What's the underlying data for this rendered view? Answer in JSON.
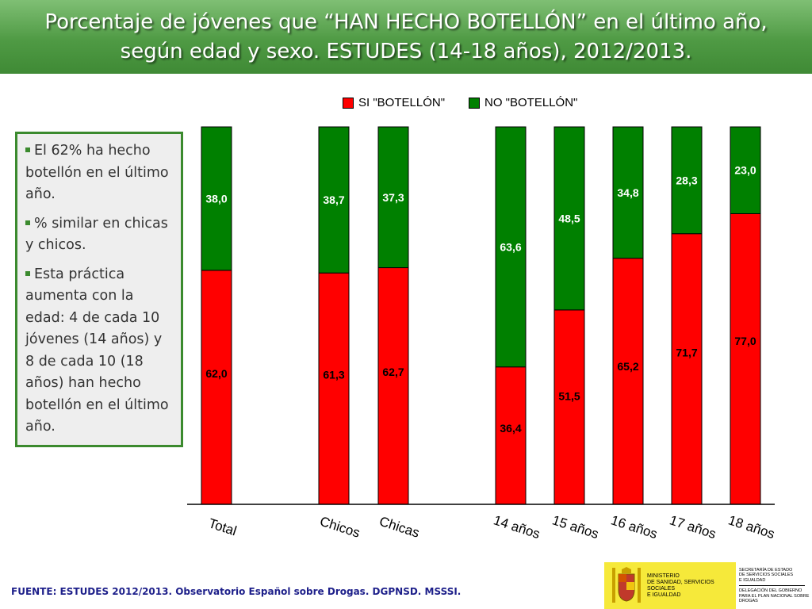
{
  "title": "Porcentaje de jóvenes que “HAN HECHO BOTELLÓN”  en el último año, según edad y sexo. ESTUDES (14-18 años), 2012/2013.",
  "bullets": [
    "El 62% ha hecho botellón en el último año.",
    "% similar en chicas y chicos.",
    "Esta práctica aumenta con la edad: 4 de cada 10 jóvenes (14 años) y 8 de cada 10 (18 años) han hecho botellón en el último año."
  ],
  "source": "FUENTE: ESTUDES 2012/2013. Observatorio Español sobre Drogas. DGPNSD. MSSSI.",
  "logo": {
    "ministry": [
      "MINISTERIO",
      "DE SANIDAD, SERVICIOS SOCIALES",
      "E IGUALDAD"
    ],
    "secretaria": [
      "SECRETARÍA DE ESTADO",
      "DE SERVICIOS SOCIALES",
      "E IGUALDAD"
    ],
    "delegacion": [
      "DELEGACIÓN DEL GOBIERNO",
      "PARA EL PLAN NACIONAL SOBRE DROGAS"
    ]
  },
  "colors": {
    "si": "#ff0000",
    "no": "#008000",
    "title_bg": "#4f9a44",
    "source": "#1d1f8a"
  },
  "chart_data": {
    "type": "bar",
    "stacked": true,
    "categories": [
      "Total",
      "Chicos",
      "Chicas",
      "14 años",
      "15 años",
      "16 años",
      "17 años",
      "18 años"
    ],
    "series": [
      {
        "name": "SI \"BOTELLÓN\"",
        "color": "#ff0000",
        "values": [
          62.0,
          61.3,
          62.7,
          36.4,
          51.5,
          65.2,
          71.7,
          77.0
        ],
        "labels": [
          "62,0",
          "61,3",
          "62,7",
          "36,4",
          "51,5",
          "65,2",
          "71,7",
          "77,0"
        ]
      },
      {
        "name": "NO \"BOTELLÓN\"",
        "color": "#008000",
        "values": [
          38.0,
          38.7,
          37.3,
          63.6,
          48.5,
          34.8,
          28.3,
          23.0
        ],
        "labels": [
          "38,0",
          "38,7",
          "37,3",
          "63,6",
          "48,5",
          "34,8",
          "28,3",
          "23,0"
        ]
      }
    ],
    "ylim": [
      0,
      100
    ],
    "legend_position": "top",
    "grid": false,
    "xlabel": "",
    "ylabel": ""
  }
}
